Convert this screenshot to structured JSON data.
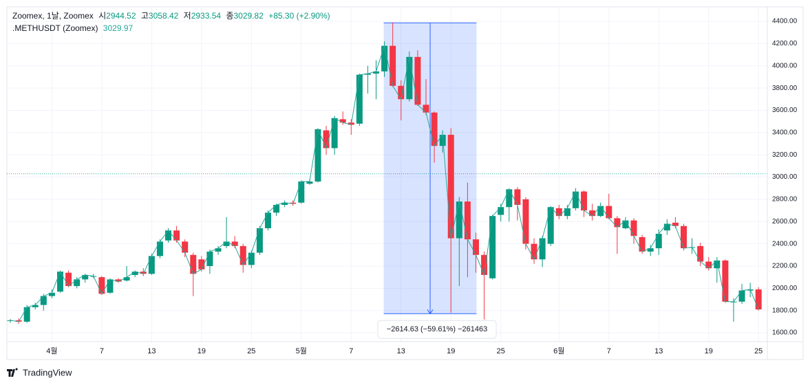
{
  "header": {
    "symbol": "Zoomex, 1날, Zoomex",
    "open_label": "시",
    "open": 2944.52,
    "high_label": "고",
    "high": 3058.42,
    "low_label": "저",
    "low": 2933.54,
    "close_label": "종",
    "close": 3029.82,
    "change": "+85.30 (+2.90%)",
    "line_name": ".METHUSDT (Zoomex)",
    "line_value": 3029.97
  },
  "brand": "TradingView",
  "chart_data": {
    "type": "candlestick",
    "categories": [
      null,
      null,
      null,
      null,
      null,
      "4월",
      null,
      null,
      null,
      null,
      null,
      "7",
      null,
      null,
      null,
      null,
      null,
      "13",
      null,
      null,
      null,
      null,
      null,
      "19",
      null,
      null,
      null,
      null,
      null,
      "25",
      null,
      null,
      null,
      null,
      null,
      "5월",
      null,
      null,
      null,
      null,
      null,
      "7",
      null,
      null,
      null,
      null,
      null,
      "13",
      null,
      null,
      null,
      null,
      null,
      "19",
      null,
      null,
      null,
      null,
      null,
      "25",
      null,
      null,
      null,
      null,
      null,
      null,
      "6월",
      null,
      null,
      null,
      null,
      null,
      "7",
      null,
      null,
      null,
      null,
      null,
      "13",
      null,
      null,
      null,
      null,
      null,
      "19",
      null,
      null,
      null,
      null,
      null,
      "25"
    ],
    "open": [
      1710,
      1712,
      1700,
      1830,
      1850,
      1930,
      1970,
      2140,
      2020,
      2080,
      2110,
      2100,
      1960,
      2080,
      2070,
      2120,
      2150,
      2130,
      2290,
      2430,
      2520,
      2420,
      2300,
      2260,
      2200,
      2330,
      2380,
      2420,
      2380,
      2210,
      2320,
      2540,
      2680,
      2750,
      2770,
      2770,
      2940,
      2960,
      3420,
      3260,
      3520,
      3490,
      3480,
      3920,
      3930,
      3950,
      4180,
      3820,
      3700,
      4080,
      3650,
      3580,
      3280,
      3380,
      2450,
      2780,
      2440,
      2300,
      2090,
      2660,
      2730,
      2890,
      2800,
      2400,
      2260,
      2400,
      2720,
      2650,
      2720,
      2870,
      2700,
      2650,
      2740,
      2630,
      2540,
      2610,
      2460,
      2330,
      2360,
      2520,
      2590,
      2560,
      2370,
      2380,
      2240,
      2180,
      2250,
      1880,
      1880,
      1980,
      1990
    ],
    "high": [
      1725,
      1730,
      1850,
      1870,
      1950,
      1990,
      2160,
      2160,
      2100,
      2130,
      2130,
      2110,
      2090,
      2090,
      2200,
      2160,
      2180,
      2310,
      2440,
      2540,
      2560,
      2440,
      2320,
      2290,
      2350,
      2380,
      2640,
      2470,
      2400,
      2340,
      2560,
      2700,
      2760,
      2790,
      2790,
      2970,
      2980,
      3440,
      3460,
      3550,
      3590,
      3520,
      3930,
      4000,
      4050,
      4220,
      4390,
      3870,
      4130,
      4140,
      3880,
      3590,
      3420,
      3440,
      2820,
      2950,
      2500,
      2330,
      2660,
      2760,
      2900,
      2910,
      2820,
      2450,
      2470,
      2740,
      2750,
      2750,
      2900,
      2880,
      2760,
      2770,
      2850,
      2650,
      2640,
      2630,
      2480,
      2390,
      2530,
      2620,
      2640,
      2580,
      2450,
      2410,
      2280,
      2280,
      2260,
      1910,
      2040,
      2050,
      2010
    ],
    "low": [
      1690,
      1680,
      1690,
      1810,
      1800,
      1910,
      1960,
      2010,
      2000,
      2050,
      2090,
      1940,
      1950,
      2050,
      2060,
      2100,
      2110,
      2120,
      2270,
      2410,
      2410,
      2280,
      1930,
      2150,
      2130,
      2300,
      2360,
      2360,
      2140,
      2180,
      2300,
      2520,
      2650,
      2730,
      2740,
      2760,
      2930,
      2950,
      3200,
      3200,
      3470,
      3380,
      3460,
      3750,
      3700,
      3900,
      3810,
      3510,
      3680,
      3640,
      3560,
      3130,
      3220,
      1780,
      2020,
      2100,
      2140,
      1720,
      2080,
      2600,
      2600,
      2610,
      2350,
      2220,
      2190,
      2380,
      2620,
      2620,
      2700,
      2640,
      2610,
      2640,
      2620,
      2310,
      2530,
      2400,
      2310,
      2290,
      2300,
      2480,
      2540,
      2340,
      2310,
      2200,
      2160,
      2050,
      1870,
      1700,
      1860,
      1920,
      1800
    ],
    "close": [
      1712,
      1700,
      1830,
      1850,
      1930,
      1960,
      2150,
      2020,
      2080,
      2120,
      2110,
      1950,
      2080,
      2060,
      2100,
      2150,
      2130,
      2290,
      2420,
      2520,
      2430,
      2320,
      2130,
      2170,
      2330,
      2360,
      2420,
      2380,
      2210,
      2320,
      2540,
      2680,
      2750,
      2770,
      2760,
      2960,
      2960,
      3430,
      3260,
      3530,
      3490,
      3470,
      3920,
      3930,
      3950,
      4180,
      3820,
      3700,
      4080,
      3650,
      3580,
      3280,
      3380,
      2450,
      2780,
      2440,
      2300,
      2120,
      2650,
      2730,
      2890,
      2750,
      2400,
      2260,
      2450,
      2730,
      2650,
      2720,
      2870,
      2700,
      2650,
      2740,
      2630,
      2550,
      2610,
      2470,
      2330,
      2360,
      2490,
      2580,
      2560,
      2360,
      2370,
      2240,
      2180,
      2250,
      1880,
      1880,
      1980,
      1990,
      1810
    ],
    "up_color": "#089981",
    "down_color": "#f23645",
    "line_color": "#26a69a",
    "ylim": [
      1520,
      4530
    ],
    "yticks": [
      {
        "value": 1600,
        "label": "1600.00"
      },
      {
        "value": 1800,
        "label": "1800.00"
      },
      {
        "value": 2000,
        "label": "2000.00"
      },
      {
        "value": 2200,
        "label": "2200.00"
      },
      {
        "value": 2400,
        "label": "2400.00"
      },
      {
        "value": 2600,
        "label": "2600.00"
      },
      {
        "value": 2800,
        "label": "2800.00"
      },
      {
        "value": 3000,
        "label": "3000.00"
      },
      {
        "value": 3200,
        "label": "3200.00"
      },
      {
        "value": 3400,
        "label": "3400.00"
      },
      {
        "value": 3600,
        "label": "3600.00"
      },
      {
        "value": 3800,
        "label": "3800.00"
      },
      {
        "value": 4000,
        "label": "4000.00"
      },
      {
        "value": 4200,
        "label": "4200.00"
      },
      {
        "value": 4400,
        "label": "4400.00"
      }
    ],
    "grid": true,
    "measure": {
      "from": 4386.22,
      "to": 1771.59,
      "label": "−2614.63 (−59.61%) −261463"
    }
  }
}
